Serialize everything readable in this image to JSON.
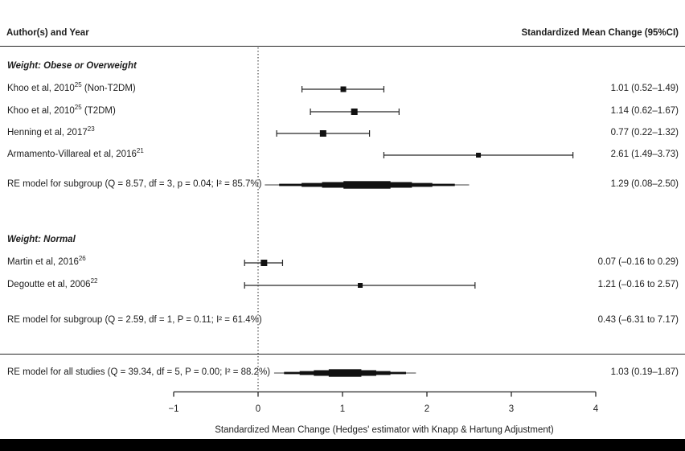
{
  "header": {
    "left": "Author(s) and Year",
    "right": "Standardized Mean Change (95%CI)"
  },
  "colors": {
    "ink": "#1d1d1d",
    "line": "#262626",
    "summary_tail": "#777777",
    "bottom_bar": "#000000"
  },
  "chart_data": {
    "type": "forest",
    "title": "",
    "xlabel": "Standardized Mean Change (Hedges' estimator with Knapp & Hartung Adjustment)",
    "x_range": [
      -1,
      4
    ],
    "x_tick_values": [
      -1,
      0,
      1,
      2,
      3,
      4
    ],
    "x_tick_labels": [
      "−1",
      "0",
      "1",
      "2",
      "3",
      "4"
    ],
    "zero_line": 0,
    "groups": [
      {
        "label": "Weight: Obese or Overweight"
      },
      {
        "label": "Weight: Normal"
      }
    ],
    "rows": [
      {
        "pre": "Khoo et al, 2010",
        "sup": "25",
        "post": " (Non-T2DM)",
        "kind": "study",
        "est": 1.01,
        "lo": 0.52,
        "hi": 1.49,
        "marker": 7,
        "ci_text": "1.01 (0.52–1.49)"
      },
      {
        "pre": "Khoo et al, 2010",
        "sup": "25",
        "post": " (T2DM)",
        "kind": "study",
        "est": 1.14,
        "lo": 0.62,
        "hi": 1.67,
        "marker": 8,
        "ci_text": "1.14 (0.62–1.67)"
      },
      {
        "pre": "Henning et al, 2017",
        "sup": "23",
        "post": "",
        "kind": "study",
        "est": 0.77,
        "lo": 0.22,
        "hi": 1.32,
        "marker": 8,
        "ci_text": "0.77 (0.22–1.32)"
      },
      {
        "pre": "Armamento-Villareal et al, 2016",
        "sup": "21",
        "post": "",
        "kind": "study",
        "est": 2.61,
        "lo": 1.49,
        "hi": 3.73,
        "marker": 6,
        "ci_text": "2.61 (1.49–3.73)"
      },
      {
        "pre": "RE model for subgroup (Q = 8.57, df = 3, p = 0.04; I² = 85.7%)",
        "sup": "",
        "post": "",
        "kind": "summary",
        "est": 1.29,
        "lo": 0.08,
        "hi": 2.5,
        "ci_text": "1.29 (0.08–2.50)"
      },
      {
        "pre": "Martin et al, 2016",
        "sup": "26",
        "post": "",
        "kind": "study",
        "est": 0.07,
        "lo": -0.16,
        "hi": 0.29,
        "marker": 8,
        "ci_text": "0.07 (–0.16 to 0.29)"
      },
      {
        "pre": "Degoutte et al, 2006",
        "sup": "22",
        "post": "",
        "kind": "study",
        "est": 1.21,
        "lo": -0.16,
        "hi": 2.57,
        "marker": 6,
        "ci_text": "1.21 (–0.16 to 2.57)"
      },
      {
        "pre": "RE model for subgroup (Q = 2.59, df = 1, P = 0.11; I² = 61.4%)",
        "sup": "",
        "post": "",
        "kind": "offscale",
        "est": 0.43,
        "lo": -6.31,
        "hi": 7.17,
        "ci_text": "0.43 (–6.31 to 7.17)"
      },
      {
        "pre": "RE model for all studies (Q = 39.34, df = 5, P = 0.00; I² = 88.2%)",
        "sup": "",
        "post": "",
        "kind": "summary",
        "est": 1.03,
        "lo": 0.19,
        "hi": 1.87,
        "ci_text": "1.03 (0.19–1.87)"
      }
    ]
  }
}
